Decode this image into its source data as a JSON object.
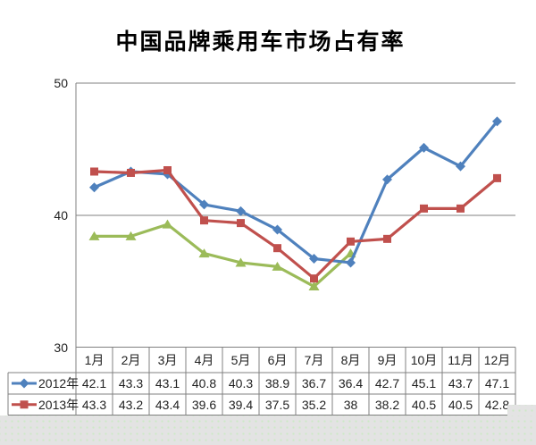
{
  "chart_data": {
    "type": "line",
    "title": "中国品牌乘用车市场占有率",
    "categories": [
      "1月",
      "2月",
      "3月",
      "4月",
      "5月",
      "6月",
      "7月",
      "8月",
      "9月",
      "10月",
      "11月",
      "12月"
    ],
    "series": [
      {
        "name": "2012年",
        "color": "#4F81BD",
        "marker": "diamond",
        "in_table": true,
        "values": [
          42.1,
          43.3,
          43.1,
          40.8,
          40.3,
          38.9,
          36.7,
          36.4,
          42.7,
          45.1,
          43.7,
          47.1
        ]
      },
      {
        "name": "2013年",
        "color": "#C0504D",
        "marker": "square",
        "in_table": true,
        "values": [
          43.3,
          43.2,
          43.4,
          39.6,
          39.4,
          37.5,
          35.2,
          38,
          38.2,
          40.5,
          40.5,
          42.8
        ]
      },
      {
        "name": "",
        "color": "#9BBB59",
        "marker": "triangle",
        "in_table": false,
        "values": [
          38.4,
          38.4,
          39.3,
          37.1,
          36.4,
          36.1,
          34.6,
          37.1
        ]
      }
    ],
    "ylim": [
      30,
      50
    ],
    "yticks": [
      30,
      40,
      50
    ],
    "grid": "horizontal-major-only",
    "legend_position": "data-table-left-column",
    "data_table_shown": true
  },
  "colors": {
    "grid_and_borders": "#808080",
    "text": "#1F1F1F",
    "background": "#FFFFFF",
    "page_pattern_base": "#E3E3E3",
    "page_pattern_dot": "#CDE8C6"
  }
}
